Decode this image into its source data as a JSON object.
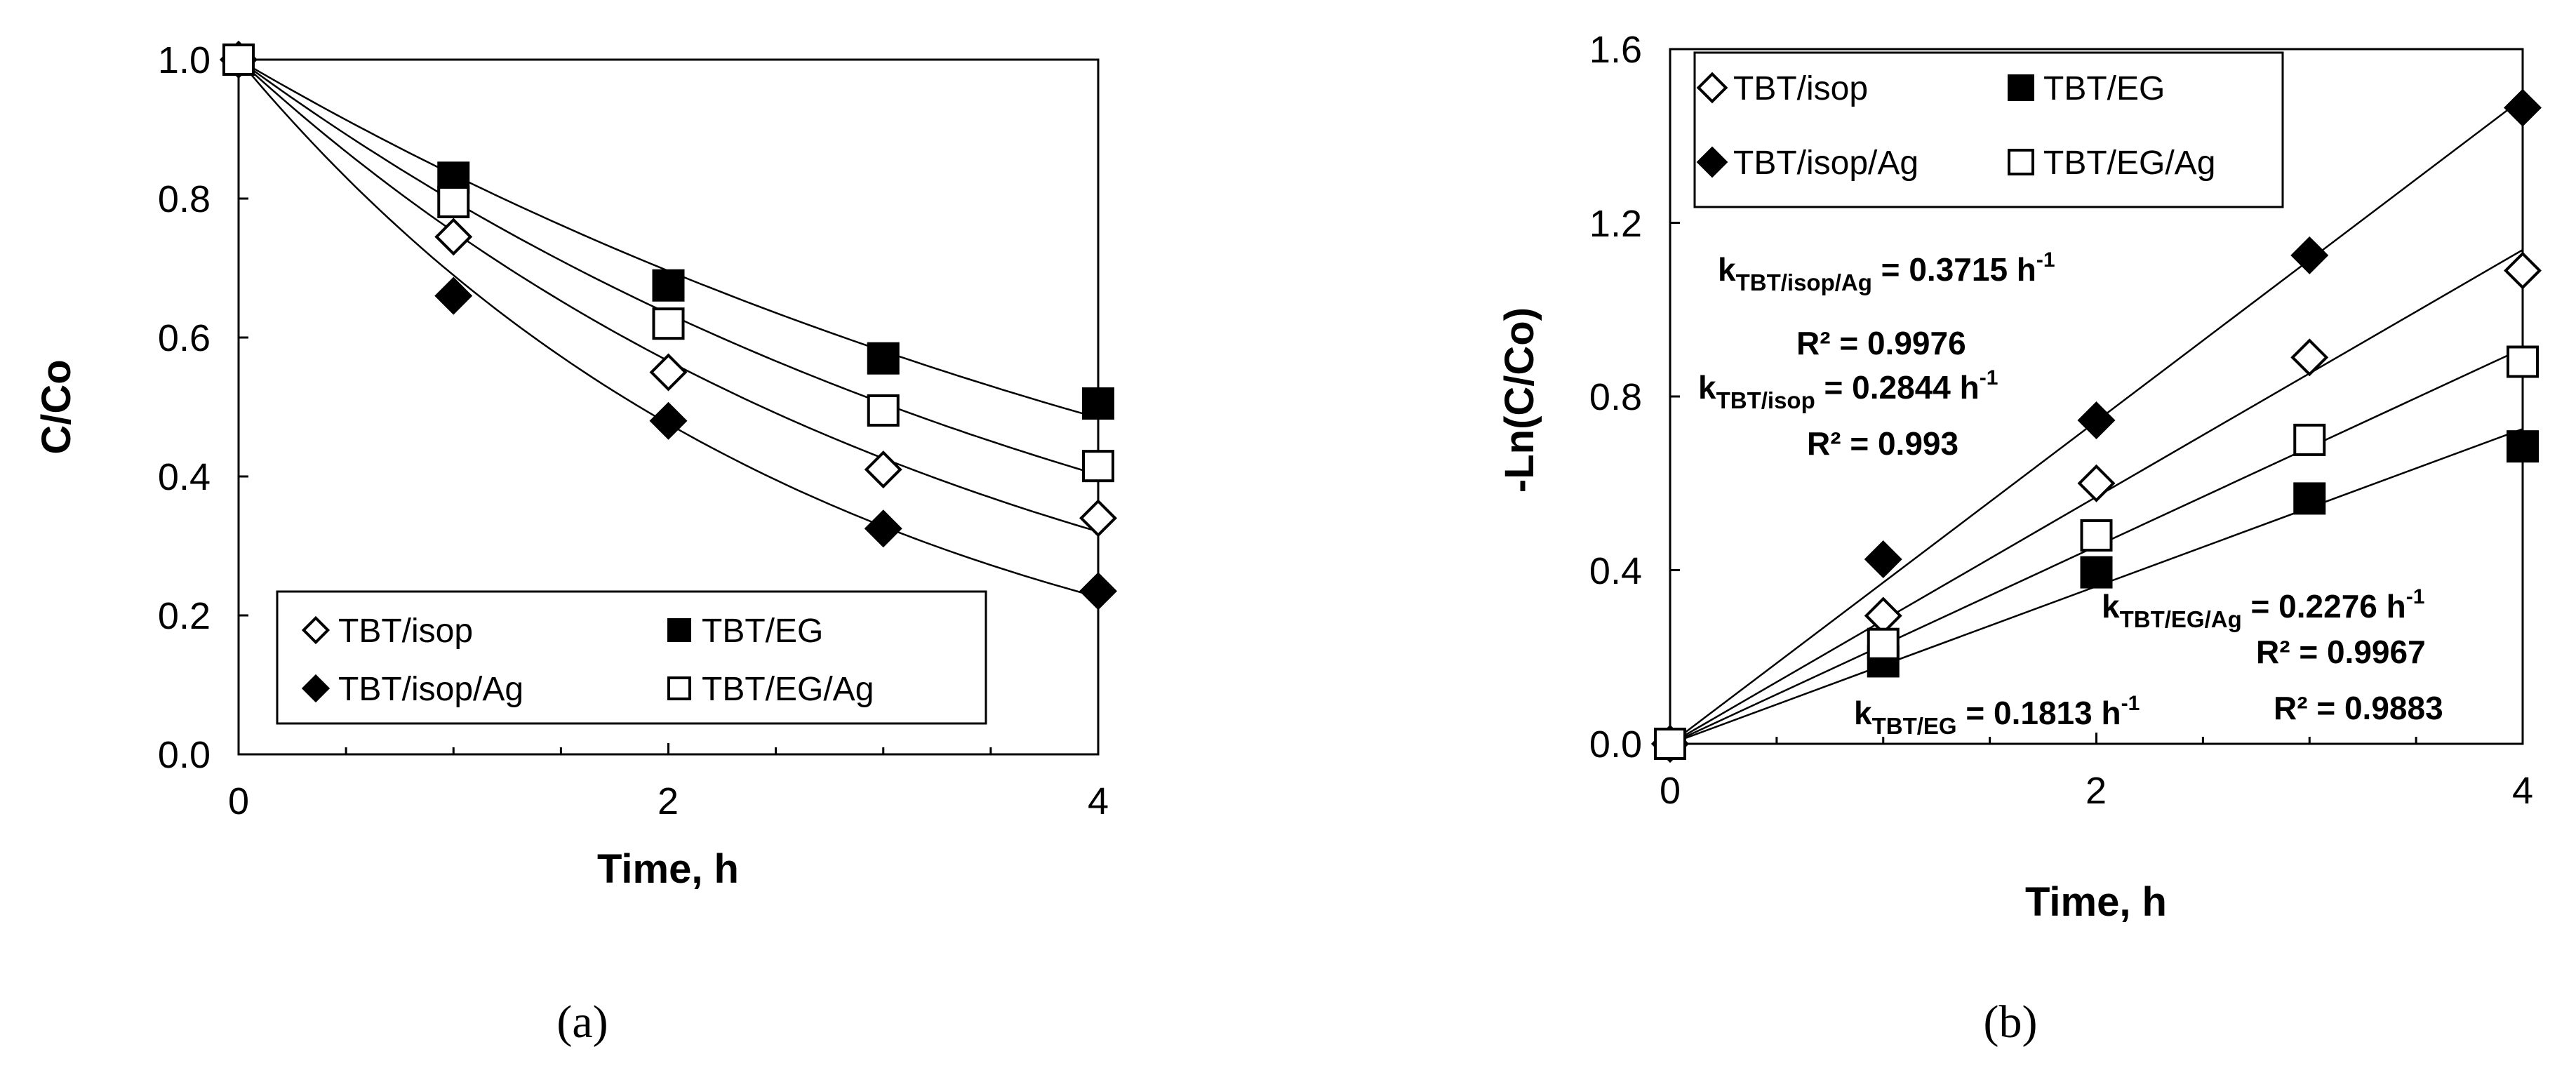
{
  "chart_data": [
    {
      "type": "scatter",
      "panel_label": "(a)",
      "xlabel": "Time, h",
      "ylabel": "C/Co",
      "xlim": [
        0,
        4
      ],
      "ylim": [
        0,
        1.0
      ],
      "xticks": [
        "0",
        "2",
        "4"
      ],
      "yticks": [
        "0.0",
        "0.2",
        "0.4",
        "0.6",
        "0.8",
        "1.0"
      ],
      "legend_position": "bottom-center",
      "fit": "exponential",
      "series": [
        {
          "name": "TBT/isop",
          "marker": "diamond-open",
          "x": [
            0,
            1,
            2,
            3,
            4
          ],
          "y": [
            1.0,
            0.745,
            0.55,
            0.41,
            0.34
          ],
          "k": 0.2844
        },
        {
          "name": "TBT/EG",
          "marker": "square-filled",
          "x": [
            0,
            1,
            2,
            3,
            4
          ],
          "y": [
            1.0,
            0.83,
            0.675,
            0.57,
            0.505
          ],
          "k": 0.1813
        },
        {
          "name": "TBT/isop/Ag",
          "marker": "diamond-filled",
          "x": [
            0,
            1,
            2,
            3,
            4
          ],
          "y": [
            1.0,
            0.66,
            0.48,
            0.325,
            0.235
          ],
          "k": 0.3715
        },
        {
          "name": "TBT/EG/Ag",
          "marker": "square-open",
          "x": [
            0,
            1,
            2,
            3,
            4
          ],
          "y": [
            1.0,
            0.795,
            0.62,
            0.495,
            0.415
          ],
          "k": 0.2276
        }
      ]
    },
    {
      "type": "scatter",
      "panel_label": "(b)",
      "xlabel": "Time, h",
      "ylabel": "-Ln(C/Co)",
      "xlim": [
        0,
        4
      ],
      "ylim": [
        0,
        1.6
      ],
      "xticks": [
        "0",
        "2",
        "4"
      ],
      "yticks": [
        "0.0",
        "0.4",
        "0.8",
        "1.2",
        "1.6"
      ],
      "legend_position": "top-left",
      "fit": "linear",
      "series": [
        {
          "name": "TBT/isop",
          "marker": "diamond-open",
          "x": [
            0,
            1,
            2,
            3,
            4
          ],
          "y": [
            0.0,
            0.295,
            0.6,
            0.89,
            1.09
          ],
          "k": 0.2844
        },
        {
          "name": "TBT/EG",
          "marker": "square-filled",
          "x": [
            0,
            1,
            2,
            3,
            4
          ],
          "y": [
            0.0,
            0.19,
            0.395,
            0.565,
            0.685
          ],
          "k": 0.1813
        },
        {
          "name": "TBT/isop/Ag",
          "marker": "diamond-filled",
          "x": [
            0,
            1,
            2,
            3,
            4
          ],
          "y": [
            0.0,
            0.425,
            0.745,
            1.125,
            1.465
          ],
          "k": 0.3715
        },
        {
          "name": "TBT/EG/Ag",
          "marker": "square-open",
          "x": [
            0,
            1,
            2,
            3,
            4
          ],
          "y": [
            0.0,
            0.23,
            0.48,
            0.7,
            0.88
          ],
          "k": 0.2276
        }
      ],
      "annotations": [
        {
          "k": "k",
          "sub": "TBT/isop/Ag",
          "mid": " = 0.3715 h",
          "sup": "-1"
        },
        {
          "text": "R² = 0.9976"
        },
        {
          "k": "k",
          "sub": "TBT/isop",
          "mid": " = 0.2844 h",
          "sup": "-1"
        },
        {
          "text": "R² = 0.993"
        },
        {
          "k": "k",
          "sub": "TBT/EG/Ag",
          "mid": " = 0.2276 h",
          "sup": "-1"
        },
        {
          "text": "R² = 0.9967"
        },
        {
          "k": "k",
          "sub": "TBT/EG",
          "mid": " = 0.1813 h",
          "sup": "-1"
        },
        {
          "text": "R² = 0.9883"
        }
      ]
    }
  ]
}
